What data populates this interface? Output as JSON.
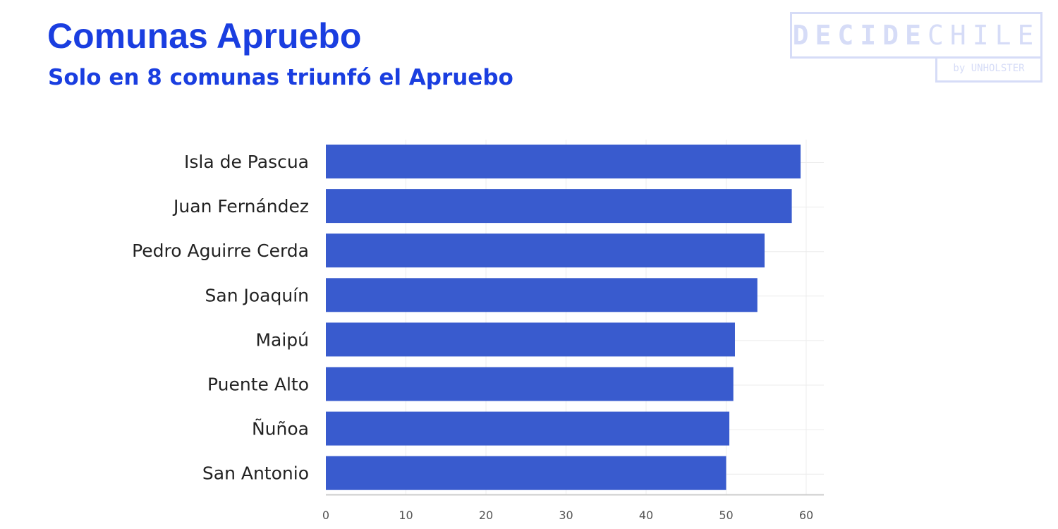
{
  "title": "Comunas Apruebo",
  "subtitle": "Solo en 8 comunas triunfó el Apruebo",
  "logo": {
    "brand_left": "DECIDE",
    "brand_right": "CHILE",
    "byline": "by UNHOLSTER"
  },
  "colors": {
    "title": "#1a3ee0",
    "bar": "#395bce",
    "axis": "#cccccc",
    "grid": "#ececec"
  },
  "chart_data": {
    "type": "bar",
    "orientation": "horizontal",
    "categories": [
      "Isla de Pascua",
      "Juan Fernández",
      "Pedro Aguirre Cerda",
      "San Joaquín",
      "Maipú",
      "Puente Alto",
      "Ñuñoa",
      "San Antonio"
    ],
    "values": [
      59.3,
      58.2,
      54.8,
      53.9,
      51.1,
      50.9,
      50.4,
      50.0
    ],
    "xlim": [
      0,
      62
    ],
    "xticks": [
      "0",
      "10",
      "20",
      "30",
      "40",
      "50",
      "60"
    ],
    "grid": true
  }
}
